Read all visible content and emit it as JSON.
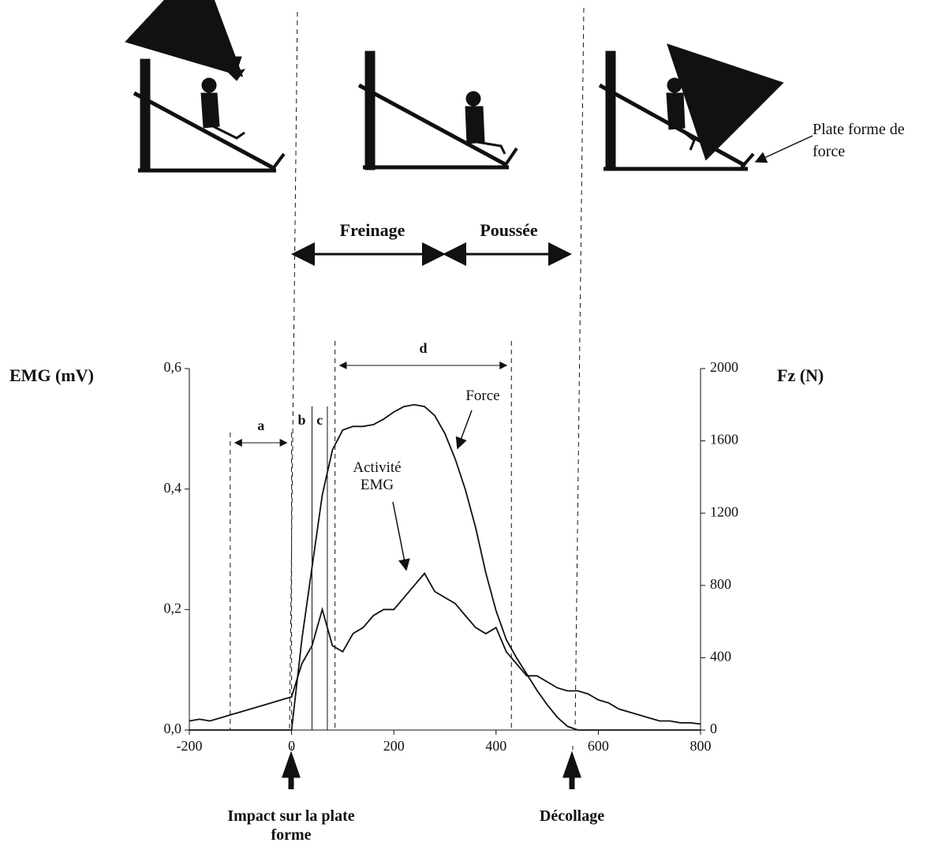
{
  "chart_data": {
    "type": "line",
    "ylabel": "EMG (mV)",
    "y2label": "Fz (N)",
    "x": [
      -200,
      -180,
      -160,
      -140,
      -120,
      -100,
      -80,
      -60,
      -40,
      -20,
      0,
      20,
      40,
      60,
      80,
      100,
      120,
      140,
      160,
      180,
      200,
      220,
      240,
      260,
      280,
      300,
      320,
      340,
      360,
      380,
      400,
      420,
      440,
      460,
      480,
      500,
      520,
      540,
      560,
      580,
      600,
      620,
      640,
      660,
      680,
      700,
      720,
      740,
      760,
      780,
      800
    ],
    "series": [
      {
        "name": "Activité EMG",
        "color": "#111111",
        "values": [
          0.015,
          0.018,
          0.015,
          0.02,
          0.025,
          0.03,
          0.035,
          0.04,
          0.045,
          0.05,
          0.055,
          0.11,
          0.14,
          0.2,
          0.14,
          0.13,
          0.16,
          0.17,
          0.19,
          0.2,
          0.2,
          0.22,
          0.24,
          0.26,
          0.23,
          0.22,
          0.21,
          0.19,
          0.17,
          0.16,
          0.17,
          0.13,
          0.11,
          0.09,
          0.09,
          0.08,
          0.07,
          0.065,
          0.065,
          0.06,
          0.05,
          0.045,
          0.035,
          0.03,
          0.025,
          0.02,
          0.015,
          0.015,
          0.012,
          0.012,
          0.01
        ]
      },
      {
        "name": "Force",
        "color": "#111111",
        "axis": "y2",
        "values": [
          0,
          0,
          0,
          0,
          0,
          0,
          0,
          0,
          0,
          0,
          0,
          500,
          900,
          1300,
          1550,
          1660,
          1680,
          1680,
          1690,
          1720,
          1760,
          1790,
          1800,
          1790,
          1740,
          1640,
          1500,
          1330,
          1120,
          870,
          660,
          500,
          400,
          310,
          220,
          140,
          70,
          20,
          0,
          0,
          0,
          0,
          0,
          0,
          0,
          0,
          0,
          0,
          0,
          0,
          0
        ]
      }
    ],
    "xlim": [
      -200,
      800
    ],
    "xticks": [
      -200,
      0,
      200,
      400,
      600,
      800
    ],
    "ylim": [
      0,
      0.6
    ],
    "yticks": [
      {
        "value": 0,
        "label": "0,0"
      },
      {
        "value": 0.2,
        "label": "0,2"
      },
      {
        "value": 0.4,
        "label": "0,4"
      },
      {
        "value": 0.6,
        "label": "0,6"
      }
    ],
    "y2lim": [
      0,
      2000
    ],
    "y2ticks": [
      0,
      400,
      800,
      1200,
      1600,
      2000
    ],
    "intervals": [
      {
        "label": "a",
        "from": -120,
        "to": 0,
        "style": "dashed"
      },
      {
        "label": "b",
        "from": 0,
        "to": 40,
        "style": "solid"
      },
      {
        "label": "c",
        "from": 40,
        "to": 70,
        "style": "solid"
      },
      {
        "label": "d",
        "from": 85,
        "to": 430,
        "style": "dashed"
      }
    ],
    "events": [
      {
        "label": "Impact sur la plate forme",
        "x": 0
      },
      {
        "label": "Décollage",
        "x": 550
      }
    ],
    "phases": [
      "Freinage",
      "Poussée"
    ],
    "apparatus_label": "Plate forme de force"
  }
}
